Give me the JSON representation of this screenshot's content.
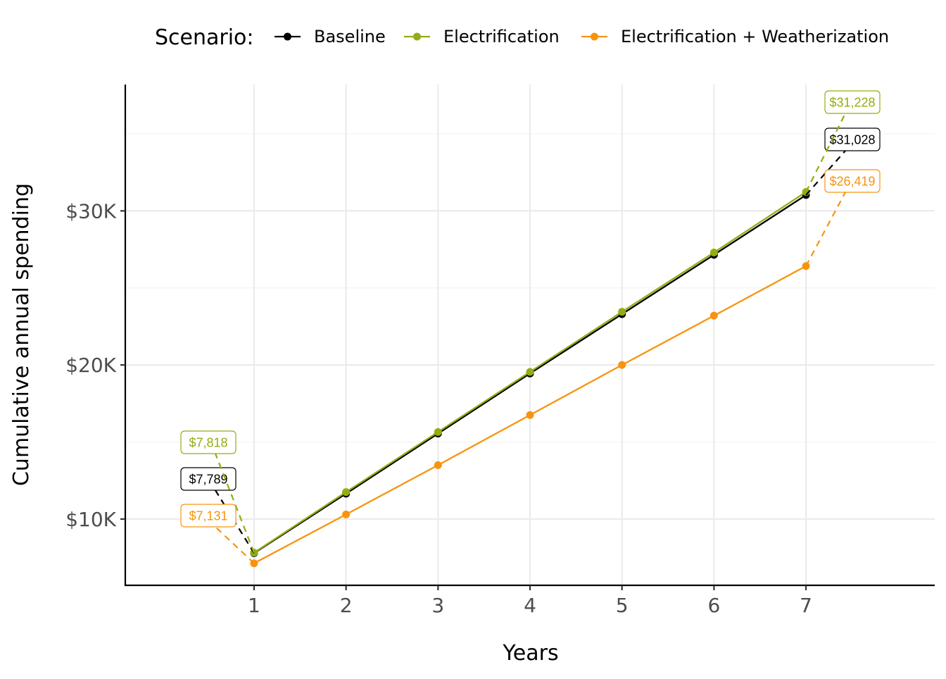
{
  "chart_data": {
    "type": "line",
    "xlabel": "Years",
    "ylabel": "Cumulative annual spending",
    "x": [
      1,
      2,
      3,
      4,
      5,
      6,
      7
    ],
    "xlim": [
      -0.4,
      8.4
    ],
    "ylim": [
      5700,
      38200
    ],
    "x_ticks": [
      1,
      2,
      3,
      4,
      5,
      6,
      7
    ],
    "x_tick_labels": [
      "1",
      "2",
      "3",
      "4",
      "5",
      "6",
      "7"
    ],
    "y_ticks": [
      10000,
      20000,
      30000
    ],
    "y_tick_labels": [
      "$10K",
      "$20K",
      "$30K"
    ],
    "y_minor_ticks": [
      15000,
      25000,
      35000
    ],
    "grid": true,
    "legend": {
      "title": "Scenario:",
      "placement": "top"
    },
    "series": [
      {
        "name": "Baseline",
        "color": "#000000",
        "values": [
          7789,
          11650,
          15550,
          19450,
          23300,
          27150,
          31028
        ],
        "end_labels": [
          "$7,789",
          "$31,028"
        ]
      },
      {
        "name": "Electrification",
        "color": "#93AD12",
        "values": [
          7818,
          11750,
          15650,
          19550,
          23450,
          27300,
          31228
        ],
        "end_labels": [
          "$7,818",
          "$31,228"
        ]
      },
      {
        "name": "Electrification + Weatherization",
        "color": "#F7940F",
        "values": [
          7131,
          10300,
          13500,
          16750,
          20000,
          23200,
          26419
        ],
        "end_labels": [
          "$7,131",
          "$26,419"
        ]
      }
    ]
  }
}
